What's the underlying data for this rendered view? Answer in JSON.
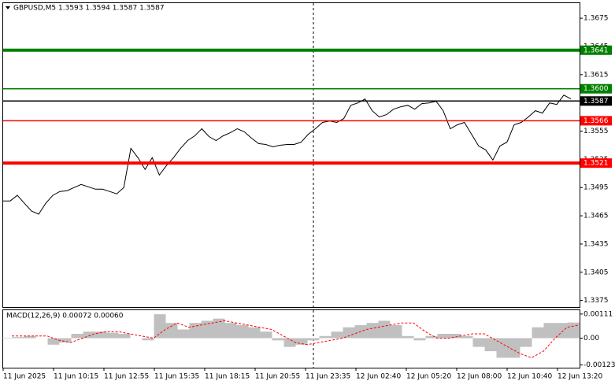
{
  "chart_data": {
    "type": "line",
    "title": "GBPUSD,M5  1.3593 1.3594 1.3587 1.3587",
    "series": [
      {
        "color": "#000000",
        "values": [
          1.34808,
          1.34808,
          1.34867,
          1.34783,
          1.347,
          1.34667,
          1.34783,
          1.34867,
          1.34908,
          1.34917,
          1.3495,
          1.34983,
          1.34958,
          1.34933,
          1.34933,
          1.34908,
          1.34883,
          1.3495,
          1.35367,
          1.35267,
          1.35142,
          1.35267,
          1.35083,
          1.35183,
          1.35267,
          1.35367,
          1.3545,
          1.355,
          1.35575,
          1.35492,
          1.3545,
          1.355,
          1.35533,
          1.35575,
          1.35542,
          1.35475,
          1.35417,
          1.35408,
          1.35383,
          1.354,
          1.35408,
          1.35408,
          1.35433,
          1.35517,
          1.35575,
          1.35642,
          1.35658,
          1.35642,
          1.35683,
          1.35825,
          1.3585,
          1.35892,
          1.35767,
          1.357,
          1.35725,
          1.35783,
          1.35808,
          1.35825,
          1.35783,
          1.35842,
          1.3585,
          1.35867,
          1.35767,
          1.35575,
          1.35617,
          1.35642,
          1.35517,
          1.35392,
          1.3535,
          1.35242,
          1.35392,
          1.35433,
          1.35617,
          1.35642,
          1.357,
          1.35767,
          1.35742,
          1.3585,
          1.35833,
          1.35933,
          1.35892
        ]
      }
    ],
    "ylim": [
      1.3368,
      1.3691
    ],
    "yticks": [
      1.3675,
      1.3645,
      1.3615,
      1.3585,
      1.3555,
      1.3525,
      1.3495,
      1.3465,
      1.3435,
      1.3405,
      1.3375
    ],
    "levels": [
      {
        "value": 1.3641,
        "color": "#008000",
        "thick": true
      },
      {
        "value": 1.36,
        "label": "1.3600",
        "color": "#008000",
        "thick": false
      },
      {
        "value": 1.3587,
        "color": "#000000",
        "thick": false
      },
      {
        "value": 1.3566,
        "color": "#ff0000",
        "thick": false
      },
      {
        "value": 1.3521,
        "color": "#ff0000",
        "thick": true
      }
    ],
    "x_labels": [
      "11 Jun 2025",
      "11 Jun 10:15",
      "11 Jun 12:55",
      "11 Jun 15:35",
      "11 Jun 18:15",
      "11 Jun 20:55",
      "11 Jun 23:35",
      "12 Jun 02:40",
      "12 Jun 05:20",
      "12 Jun 08:00",
      "12 Jun 10:40",
      "12 Jun 13:20"
    ],
    "macd": {
      "label": "MACD(12,26,9) 0.00072 0.00060",
      "y2lim": [
        -0.001357,
        0.001286
      ],
      "y2ticks": [
        0.00111,
        {
          "value": 0,
          "label": "0.00"
        },
        -0.00123
      ],
      "histogram": {
        "color": "#c0c0c0",
        "values": [
          2e-05,
          5e-05,
          0.0001,
          0,
          -0.0003,
          -0.0002,
          0.0002,
          0.0003,
          0.0003,
          0.00025,
          0.0002,
          0,
          -0.0001,
          0.0011,
          0.0007,
          0.0004,
          0.0007,
          0.0008,
          0.0009,
          0.0007,
          0.0006,
          0.0005,
          0.0003,
          -0.0001,
          -0.0004,
          -0.0003,
          -0.0001,
          0.0001,
          0.0003,
          0.0005,
          0.0006,
          0.0007,
          0.0008,
          0.0006,
          0.0001,
          -0.0001,
          0.0001,
          0.0002,
          0.0002,
          0.0001,
          -0.0004,
          -0.0006,
          -0.0009,
          -0.0009,
          -0.0004,
          0.0005,
          0.0007,
          0.0007,
          0.00072
        ]
      },
      "signal": {
        "color": "#ff0000",
        "values": [
          0.0001,
          0.0001,
          0.0001,
          0.0001,
          -0.0001,
          -0.0002,
          0,
          0.0002,
          0.0003,
          0.0003,
          0.0002,
          0.0001,
          0,
          0.0004,
          0.0007,
          0.0005,
          0.0006,
          0.0007,
          0.0008,
          0.0007,
          0.0006,
          0.0005,
          0.0004,
          0.0001,
          -0.0002,
          -0.0003,
          -0.0002,
          -0.0001,
          0,
          0.0002,
          0.0004,
          0.0005,
          0.0006,
          0.0007,
          0.0007,
          0.0003,
          0,
          0,
          0.0001,
          0.0002,
          0.0002,
          -0.0001,
          -0.0004,
          -0.0007,
          -0.0009,
          -0.0006,
          0,
          0.0005,
          0.0006
        ]
      }
    }
  }
}
